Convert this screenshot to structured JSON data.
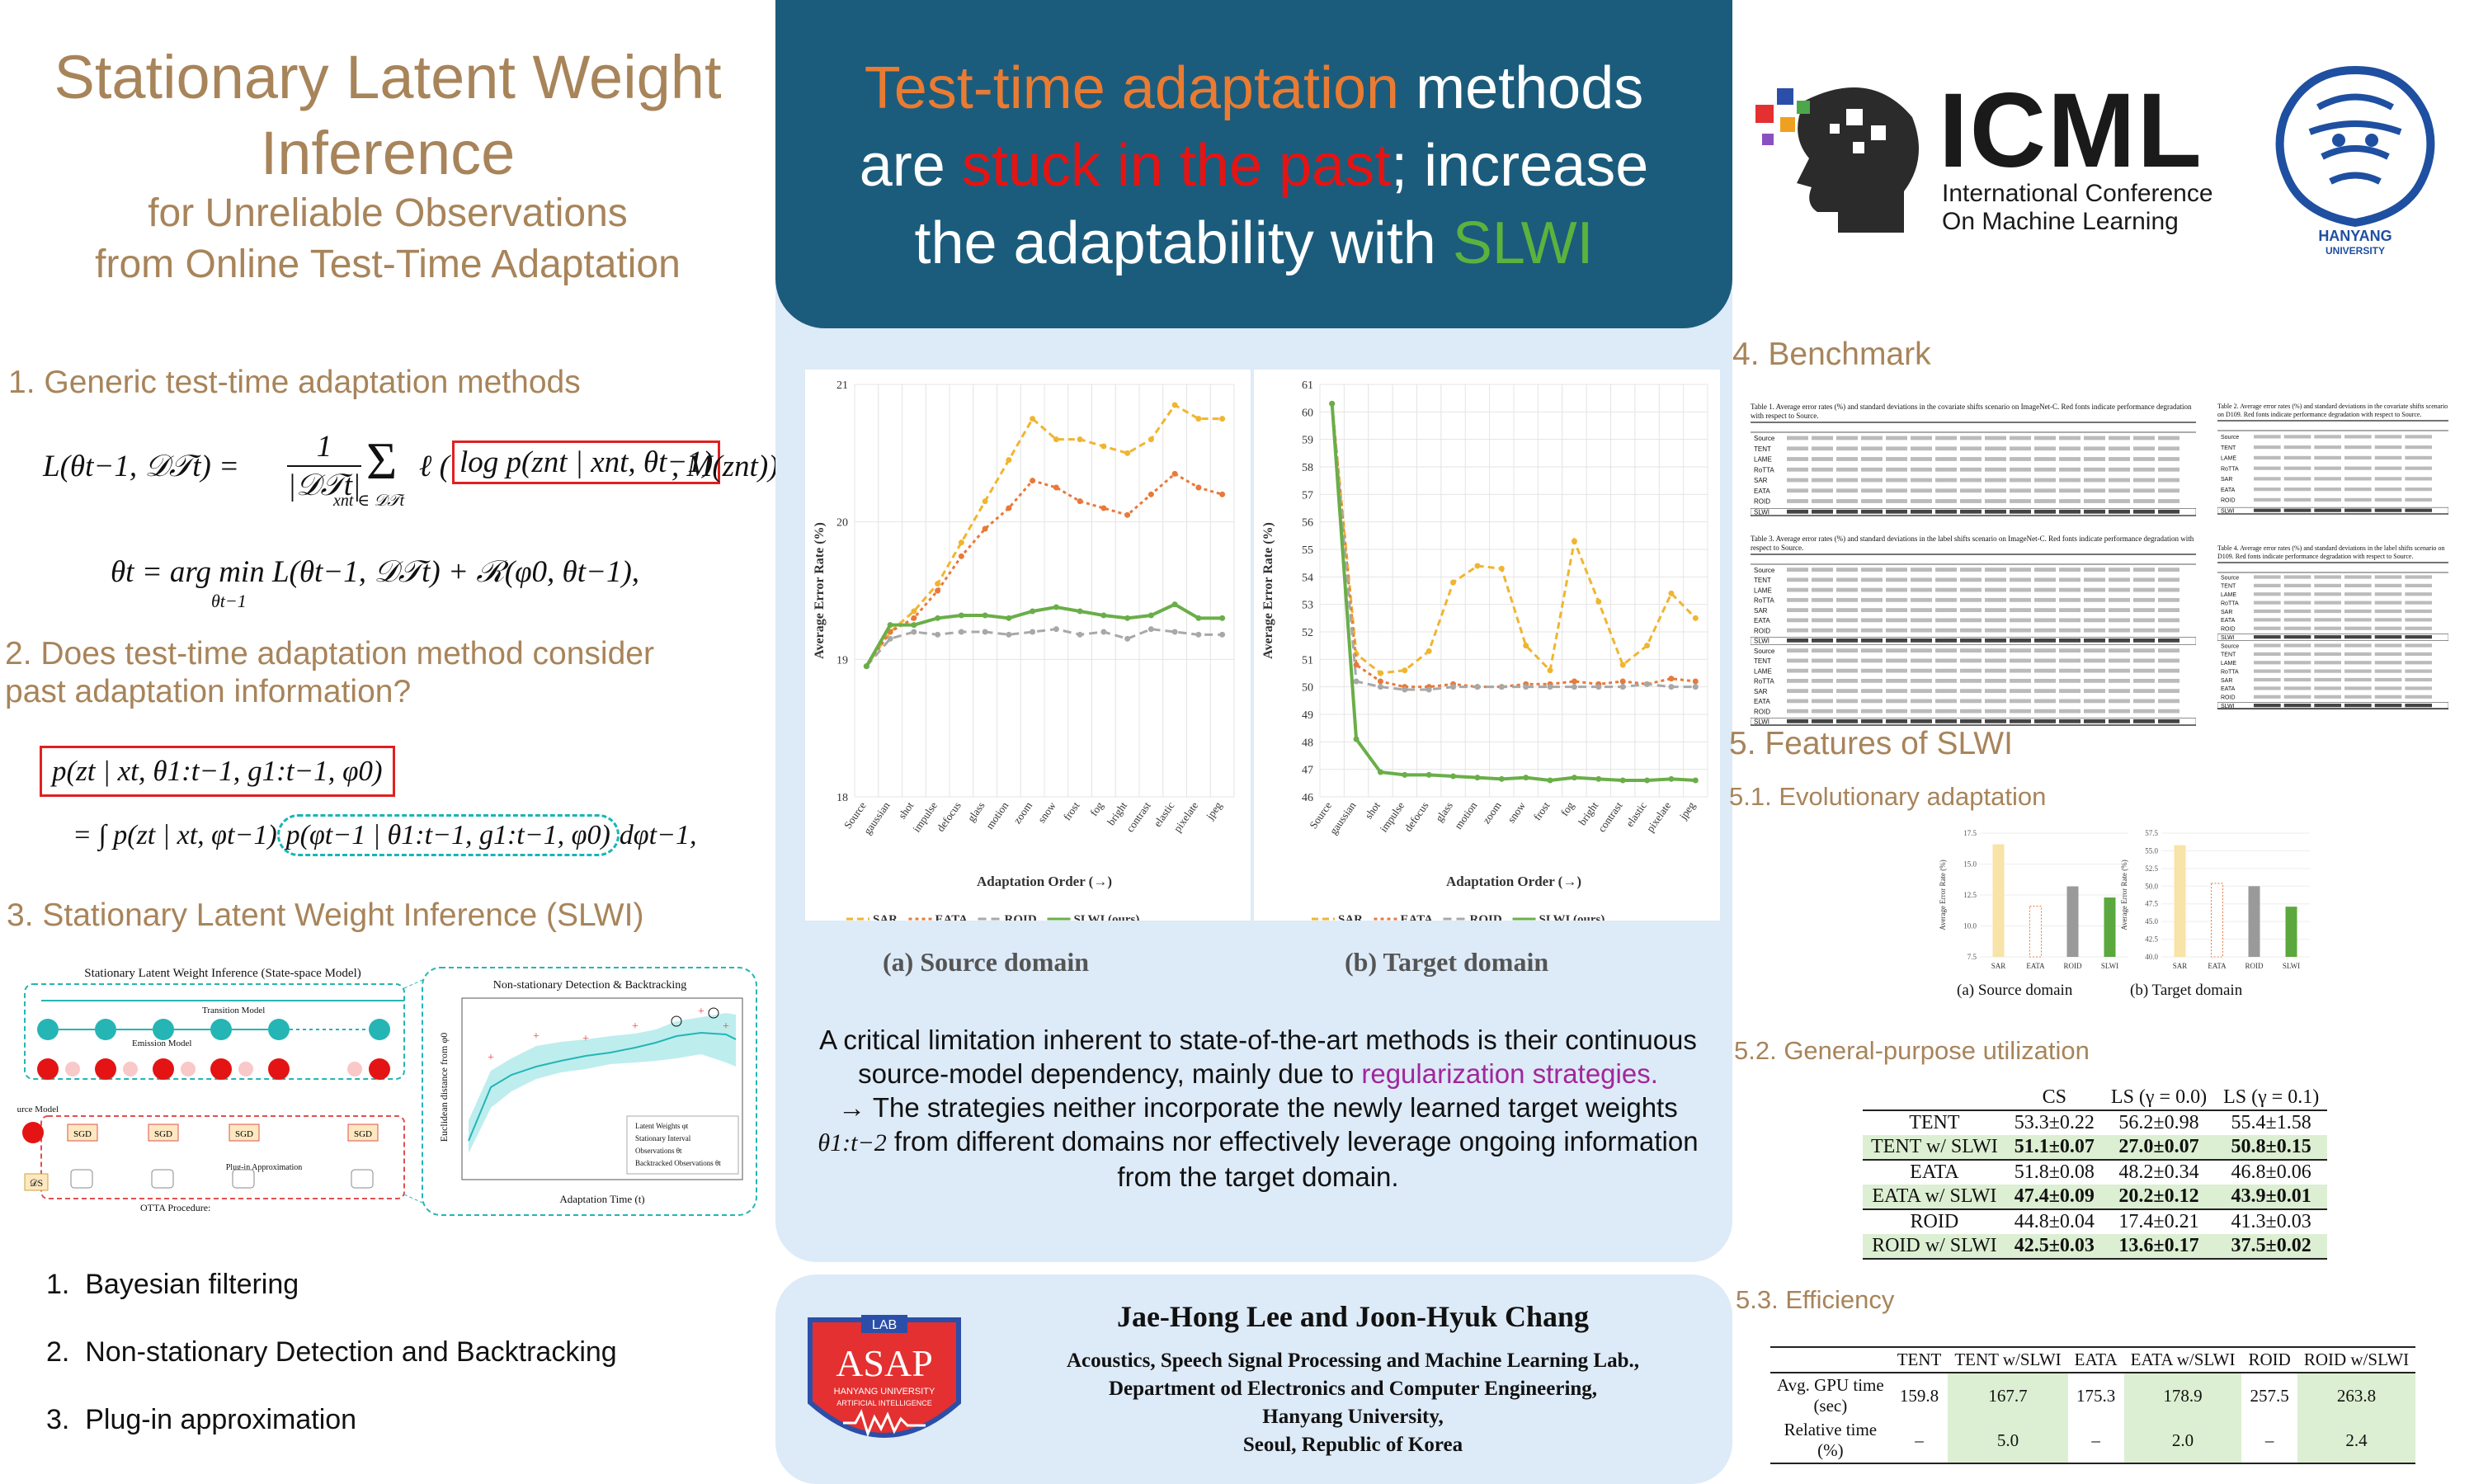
{
  "title": {
    "line1": "Stationary Latent Weight",
    "line2": "Inference",
    "sub1": "for Unreliable Observations",
    "sub2": "from Online Test-Time Adaptation"
  },
  "section1": {
    "heading": "1. Generic test-time adaptation methods",
    "eq1_lhs": "L(θt−1, 𝒟𝒯t) = ",
    "eq1_frac_num": "1",
    "eq1_frac_den": "|𝒟𝒯t|",
    "eq1_sum": "Σ",
    "eq1_sum_sub": "xnt ∈ 𝒟𝒯t",
    "eq1_l": "ℓ (",
    "eq1_boxed": "log p(znt | xnt, θt−1)",
    "eq1_rest": ", M(znt)) ,",
    "eq2": "θt = arg min L(θt−1, 𝒟𝒯t) + ℛ(φ0, θt−1),",
    "eq2_sub": "θt−1"
  },
  "section2": {
    "heading_line1": "2. Does test-time adaptation method consider",
    "heading_line2": "past adaptation information?",
    "eq_boxed": "p(zt | xt, θ1:t−1, g1:t−1, φ0)",
    "eq_line2_a": "= ∫ p(zt | xt, φt−1)",
    "eq_line2_dashed": "p(φt−1 | θ1:t−1, g1:t−1, φ0)",
    "eq_line2_b": "dφt−1,"
  },
  "section3": {
    "heading": "3. Stationary Latent Weight Inference (SLWI)",
    "fig_title": "Stationary Latent Weight Inference (State-space Model)",
    "fig_inset_title": "Non-stationary Detection & Backtracking",
    "fig_transition": "Transition Model",
    "fig_emission": "Emission Model",
    "fig_source": "Source Model",
    "fig_plugin": "Plug-in Approximation",
    "fig_sgd": "SGD",
    "fig_otta": "OTTA Procedure:",
    "fig_ds": "𝒟S",
    "fig_xlabel": "Adaptation Time (t)",
    "fig_ylabel": "Euclidean distance from φ0",
    "fig_legend": [
      "Latent Weights φt",
      "Stationary Interval",
      "Observations θt",
      "Backtracked Observations θt"
    ]
  },
  "features_list": [
    "Bayesian filtering",
    "Non-stationary Detection and Backtracking",
    "Plug-in approximation"
  ],
  "headline": {
    "part1": "Test-time adaptation",
    "part2": " methods",
    "part3": "are ",
    "part4": "stuck in the past",
    "part5": "; increase",
    "part6": "the adaptability with ",
    "part7": "SLWI"
  },
  "colors": {
    "sar": "#f0b530",
    "eata": "#e8793a",
    "roid": "#a8a8a8",
    "slwi": "#6aae48",
    "tan": "#a8845a",
    "header_blue": "#1b5c7c"
  },
  "chart_data": [
    {
      "type": "line",
      "caption": "(a) Source domain",
      "xlabel": "Adaptation Order (→)",
      "ylabel": "Average Error Rate (%)",
      "ylim": [
        18,
        21
      ],
      "yticks": [
        "21",
        "20",
        "19",
        "18"
      ],
      "categories": [
        "Source",
        "gaussian",
        "shot",
        "impulse",
        "defocus",
        "glass",
        "motion",
        "zoom",
        "snow",
        "frost",
        "fog",
        "bright",
        "contrast",
        "elastic",
        "pixelate",
        "jpeg"
      ],
      "series": [
        {
          "name": "SAR",
          "values": [
            18.95,
            19.2,
            19.35,
            19.55,
            19.85,
            20.15,
            20.45,
            20.75,
            20.6,
            20.6,
            20.55,
            20.5,
            20.6,
            20.85,
            20.75,
            20.75
          ]
        },
        {
          "name": "EATA",
          "values": [
            18.95,
            19.2,
            19.3,
            19.5,
            19.75,
            19.95,
            20.1,
            20.3,
            20.25,
            20.15,
            20.1,
            20.05,
            20.2,
            20.35,
            20.25,
            20.2
          ]
        },
        {
          "name": "ROID",
          "values": [
            18.95,
            19.15,
            19.2,
            19.18,
            19.2,
            19.2,
            19.18,
            19.2,
            19.22,
            19.18,
            19.2,
            19.15,
            19.22,
            19.2,
            19.18,
            19.18
          ]
        },
        {
          "name": "SLWI (ours)",
          "values": [
            18.95,
            19.25,
            19.25,
            19.3,
            19.32,
            19.32,
            19.3,
            19.35,
            19.38,
            19.35,
            19.32,
            19.3,
            19.32,
            19.4,
            19.3,
            19.3
          ]
        }
      ]
    },
    {
      "type": "line",
      "caption": "(b) Target domain",
      "xlabel": "Adaptation Order (→)",
      "ylabel": "Average Error Rate (%)",
      "ylim": [
        46,
        61
      ],
      "yticks": [
        "61",
        "60",
        "59",
        "58",
        "57",
        "56",
        "55",
        "54",
        "53",
        "52",
        "51",
        "50",
        "49",
        "48",
        "47",
        "46"
      ],
      "categories": [
        "Source",
        "gaussian",
        "shot",
        "impulse",
        "defocus",
        "glass",
        "motion",
        "zoom",
        "snow",
        "frost",
        "fog",
        "bright",
        "contrast",
        "elastic",
        "pixelate",
        "jpeg"
      ],
      "series": [
        {
          "name": "SAR",
          "values": [
            60.3,
            51.2,
            50.5,
            50.6,
            51.3,
            53.8,
            54.4,
            54.3,
            51.5,
            50.6,
            55.3,
            53.1,
            50.8,
            51.5,
            53.4,
            52.5
          ]
        },
        {
          "name": "EATA",
          "values": [
            60.3,
            50.8,
            50.2,
            50.0,
            50.0,
            50.1,
            50.0,
            50.0,
            50.1,
            50.1,
            50.2,
            50.1,
            50.2,
            50.1,
            50.3,
            50.2
          ]
        },
        {
          "name": "ROID",
          "values": [
            60.3,
            50.2,
            50.0,
            49.9,
            49.9,
            50.0,
            50.0,
            50.0,
            50.0,
            50.0,
            50.0,
            50.0,
            50.0,
            50.1,
            50.0,
            50.0
          ]
        },
        {
          "name": "SLWI (ours)",
          "values": [
            60.3,
            48.1,
            46.9,
            46.8,
            46.8,
            46.75,
            46.7,
            46.65,
            46.7,
            46.6,
            46.7,
            46.65,
            46.6,
            46.6,
            46.65,
            46.6
          ]
        }
      ]
    },
    {
      "type": "bar",
      "caption": "(a) Source domain",
      "ylabel": "Average Error Rate (%)",
      "yticks": [
        "17.5",
        "15.0",
        "12.5",
        "10.0",
        "7.5"
      ],
      "categories": [
        "SAR",
        "EATA",
        "ROID",
        "SLWI"
      ],
      "values": [
        16.6,
        11.6,
        13.2,
        12.3
      ]
    },
    {
      "type": "bar",
      "caption": "(b) Target domain",
      "ylabel": "Average Error Rate (%)",
      "yticks": [
        "57.5",
        "55.0",
        "52.5",
        "50.0",
        "47.5",
        "45.0",
        "42.5",
        "40.0"
      ],
      "categories": [
        "SAR",
        "EATA",
        "ROID",
        "SLWI"
      ],
      "values": [
        55.8,
        50.4,
        50.0,
        47.1
      ]
    }
  ],
  "legend_labels": [
    "SAR",
    "EATA",
    "ROID",
    "SLWI (ours)"
  ],
  "critical_text": {
    "line1": "A critical limitation inherent to state-of-the-art methods is their continuous source-model dependency, mainly due to ",
    "highlight": "regularization strategies.",
    "line2": "→ The strategies neither incorporate the newly learned target weights ",
    "theta": "θ1:t−2",
    "line3": " from different domains nor effectively leverage ongoing information from the target domain."
  },
  "authors": {
    "names": "Jae-Hong Lee and Joon-Hyuk Chang",
    "affil1": "Acoustics, Speech Signal Processing and Machine Learning Lab.,",
    "affil2": "Department od Electronics and Computer Engineering,",
    "affil3": "Hanyang University,",
    "affil4": "Seoul, Republic of Korea"
  },
  "lab_logo": {
    "top": "LAB",
    "name": "ASAP",
    "sub1": "HANYANG UNIVERSITY",
    "sub2": "ARTIFICIAL INTELLIGENCE"
  },
  "icml_logo": {
    "name": "ICML",
    "line1": "International Conference",
    "line2": "On Machine Learning"
  },
  "hanyang_logo": {
    "line1": "HANYANG",
    "line2": "UNIVERSITY"
  },
  "section4": {
    "heading": "4. Benchmark",
    "table1_caption": "Table 1. Average error rates (%) and standard deviations in the covariate shifts scenario on ImageNet-C. Red fonts indicate performance degradation with respect to Source.",
    "table2_caption": "Table 2. Average error rates (%) and standard deviations in the covariate shifts scenario on D109. Red fonts indicate performance degradation with respect to Source.",
    "table3_caption": "Table 3. Average error rates (%) and standard deviations in the label shifts scenario on ImageNet-C. Red fonts indicate performance degradation with respect to Source.",
    "table4_caption": "Table 4. Average error rates (%) and standard deviations in the label shifts scenario on D109. Red fonts indicate performance degradation with respect to Source.",
    "methods": [
      "Source",
      "TENT",
      "LAME",
      "RoTTA",
      "SAR",
      "EATA",
      "ROID",
      "SLWI"
    ]
  },
  "section5": {
    "heading": "5. Features of SLWI",
    "sub1": "5.1. Evolutionary adaptation",
    "sub2": "5.2. General-purpose utilization",
    "sub3": "5.3. Efficiency",
    "table52": {
      "headers": [
        "",
        "CS",
        "LS (γ = 0.0)",
        "LS (γ = 0.1)"
      ],
      "rows": [
        [
          "TENT",
          "53.3±0.22",
          "56.2±0.98",
          "55.4±1.58"
        ],
        [
          "TENT w/ SLWI",
          "51.1±0.07",
          "27.0±0.07",
          "50.8±0.15"
        ],
        [
          "EATA",
          "51.8±0.08",
          "48.2±0.34",
          "46.8±0.06"
        ],
        [
          "EATA w/ SLWI",
          "47.4±0.09",
          "20.2±0.12",
          "43.9±0.01"
        ],
        [
          "ROID",
          "44.8±0.04",
          "17.4±0.21",
          "41.3±0.03"
        ],
        [
          "ROID w/ SLWI",
          "42.5±0.03",
          "13.6±0.17",
          "37.5±0.02"
        ]
      ]
    },
    "table53": {
      "headers": [
        "",
        "TENT",
        "TENT w/SLWI",
        "EATA",
        "EATA w/SLWI",
        "ROID",
        "ROID w/SLWI"
      ],
      "row1_label_a": "Avg. GPU time",
      "row1_label_b": "(sec)",
      "row1": [
        "159.8",
        "167.7",
        "175.3",
        "178.9",
        "257.5",
        "263.8"
      ],
      "row2_label_a": "Relative time",
      "row2_label_b": "(%)",
      "row2": [
        "–",
        "5.0",
        "–",
        "2.0",
        "–",
        "2.4"
      ]
    }
  }
}
